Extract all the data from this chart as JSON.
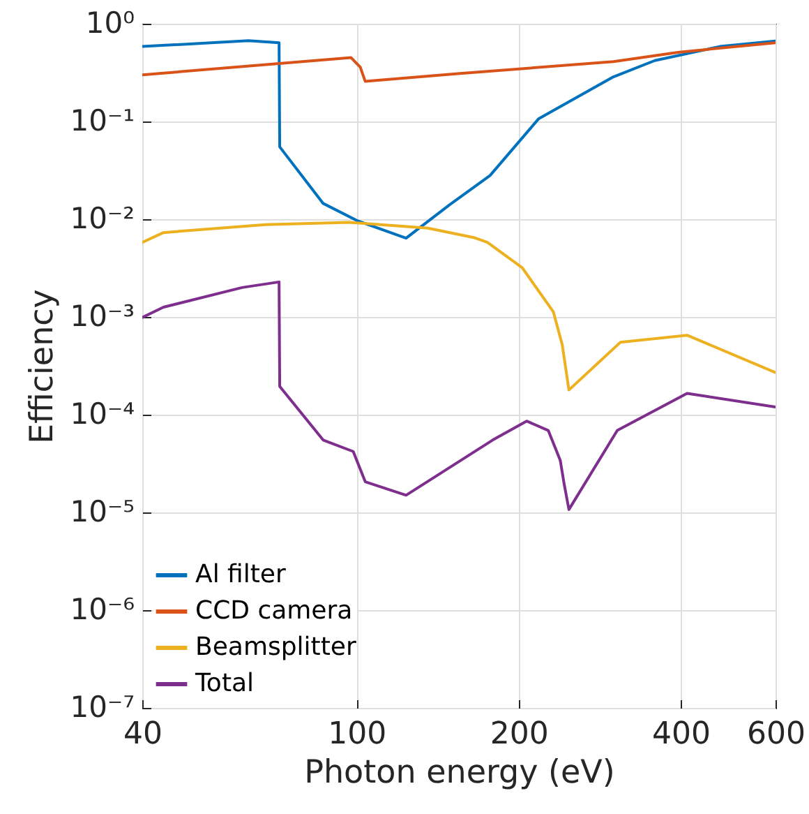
{
  "chart_data": {
    "type": "line",
    "xlabel": "Photon energy (eV)",
    "ylabel": "Efficiency",
    "log": "xy",
    "grid": true,
    "legend": "bottom left",
    "line_style": "solid",
    "marker": "none",
    "xlim": [
      40,
      600
    ],
    "xticks": [
      40,
      100,
      200,
      400,
      600
    ],
    "ylim": [
      1e-07,
      1
    ],
    "yticks": [
      {
        "value": 1e-07,
        "label": "10⁻⁷"
      },
      {
        "value": 1e-06,
        "label": "10⁻⁶"
      },
      {
        "value": 1e-05,
        "label": "10⁻⁵"
      },
      {
        "value": 0.0001,
        "label": "10⁻⁴"
      },
      {
        "value": 0.001,
        "label": "10⁻³"
      },
      {
        "value": 0.01,
        "label": "10⁻²"
      },
      {
        "value": 0.1,
        "label": "10⁻¹"
      },
      {
        "value": 1,
        "label": "10⁰"
      }
    ],
    "series": [
      {
        "name": "Al filter",
        "color": "#0072bd",
        "x": [
          40,
          63,
          71.8,
          72,
          86.7,
          100.5,
          123.6,
          149,
          177,
          218,
          300,
          358,
          473,
          600
        ],
        "values": [
          0.585,
          0.67,
          0.64,
          0.055,
          0.0145,
          0.0096,
          0.0064,
          0.0141,
          0.028,
          0.107,
          0.286,
          0.42,
          0.585,
          0.667
        ]
      },
      {
        "name": "CCD camera",
        "color": "#d95319",
        "x": [
          40,
          97.7,
          101.6,
          103.8,
          155.6,
          300,
          395,
          600
        ],
        "values": [
          0.3,
          0.45,
          0.36,
          0.257,
          0.31,
          0.41,
          0.51,
          0.64
        ]
      },
      {
        "name": "Beamsplitter",
        "color": "#edb120",
        "x": [
          40,
          43.8,
          67.8,
          96.8,
          135.6,
          165,
          175,
          203,
          232,
          241,
          248,
          309,
          411,
          600
        ],
        "values": [
          0.0058,
          0.0073,
          0.0088,
          0.0093,
          0.0081,
          0.0065,
          0.0058,
          0.0032,
          0.00113,
          0.00052,
          0.000179,
          0.00055,
          0.00065,
          0.00027
        ]
      },
      {
        "name": "Total",
        "color": "#7e2f8e",
        "x": [
          40,
          43.8,
          61.3,
          71.8,
          72,
          86.7,
          98.6,
          103.8,
          123.6,
          179,
          207,
          227,
          239,
          243,
          248,
          305,
          411,
          600
        ],
        "values": [
          0.00099,
          0.00126,
          0.002,
          0.00228,
          0.000195,
          5.5e-05,
          4.2e-05,
          2.06e-05,
          1.5e-05,
          5.5e-05,
          8.6e-05,
          6.9e-05,
          3.4e-05,
          1.95e-05,
          1.07e-05,
          6.9e-05,
          0.000165,
          0.00012
        ]
      }
    ]
  }
}
